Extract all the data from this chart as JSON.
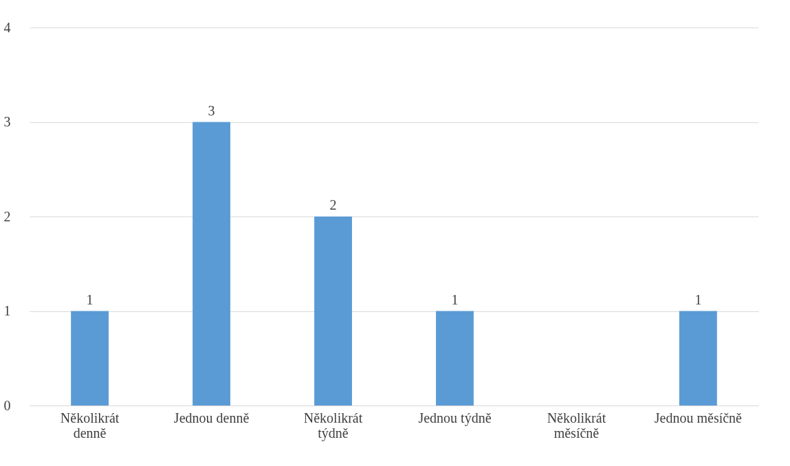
{
  "chart_data": {
    "type": "bar",
    "categories": [
      "Několikrát denně",
      "Jednou denně",
      "Několikrát týdně",
      "Jednou týdně",
      "Několikrát měsíčně",
      "Jednou měsíčně"
    ],
    "values": [
      1,
      3,
      2,
      1,
      0,
      1
    ],
    "value_labels": [
      "1",
      "3",
      "2",
      "1",
      null,
      "1"
    ],
    "color": "#5b9bd5",
    "ylim": [
      0,
      4
    ],
    "yticks": [
      0,
      1,
      2,
      3,
      4
    ],
    "grid": "y"
  }
}
